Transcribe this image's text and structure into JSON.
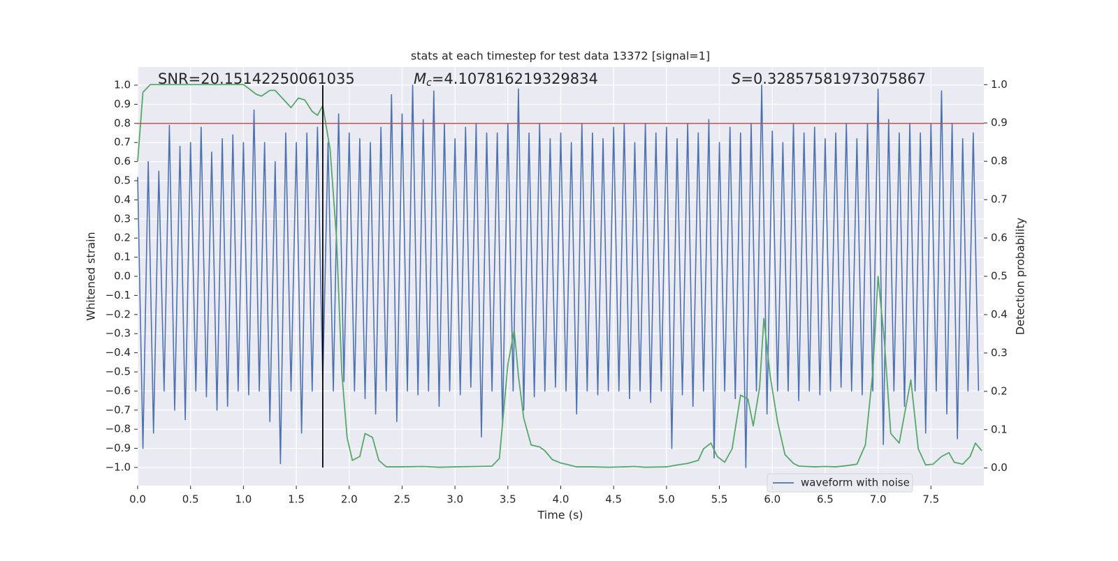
{
  "chart_data": {
    "type": "line",
    "title": "stats at each timestep for test data 13372 [signal=1]",
    "xlabel": "Time (s)",
    "ylabel": "Whitened strain",
    "y2label": "Detection probability",
    "xlim": [
      0,
      8
    ],
    "ylim": [
      -1.095,
      1.095
    ],
    "y2lim": [
      -0.046,
      1.046
    ],
    "xticks": [
      {
        "value": 0,
        "label": "0.0"
      },
      0.5,
      {
        "value": 1,
        "label": "1.0"
      },
      1.5,
      {
        "value": 2,
        "label": "2.0"
      },
      2.5,
      {
        "value": 3,
        "label": "3.0"
      },
      3.5,
      {
        "value": 4,
        "label": "4.0"
      },
      4.5,
      {
        "value": 5,
        "label": "5.0"
      },
      5.5,
      {
        "value": 6,
        "label": "6.0"
      },
      6.5,
      {
        "value": 7,
        "label": "7.0"
      },
      7.5
    ],
    "yticks": [
      {
        "value": 1,
        "label": "1.0"
      },
      0.9,
      0.8,
      0.7,
      0.6,
      0.5,
      0.4,
      0.3,
      0.2,
      0.1,
      {
        "value": 0,
        "label": "0.0"
      },
      {
        "value": -0.1,
        "label": "−0.1"
      },
      {
        "value": -0.2,
        "label": "−0.2"
      },
      {
        "value": -0.3,
        "label": "−0.3"
      },
      {
        "value": -0.4,
        "label": "−0.4"
      },
      {
        "value": -0.5,
        "label": "−0.5"
      },
      {
        "value": -0.6,
        "label": "−0.6"
      },
      {
        "value": -0.7,
        "label": "−0.7"
      },
      {
        "value": -0.8,
        "label": "−0.8"
      },
      {
        "value": -0.9,
        "label": "−0.9"
      },
      {
        "value": -1,
        "label": "−1.0"
      }
    ],
    "y2ticks": [
      {
        "value": 0,
        "label": "0.0"
      },
      0.1,
      0.2,
      0.3,
      0.4,
      0.5,
      0.6,
      0.7,
      0.8,
      0.9,
      {
        "value": 1,
        "label": "1.0"
      }
    ],
    "grid": true,
    "legend": "lower right",
    "series": [
      {
        "name": "waveform with noise",
        "color": "#4c72b0",
        "x": [
          0,
          0.05,
          0.1,
          0.15,
          0.2,
          0.25,
          0.3,
          0.35,
          0.4,
          0.45,
          0.5,
          0.55,
          0.6,
          0.65,
          0.7,
          0.75,
          0.8,
          0.85,
          0.9,
          0.95,
          1,
          1.05,
          1.1,
          1.15,
          1.2,
          1.25,
          1.3,
          1.35,
          1.4,
          1.45,
          1.5,
          1.55,
          1.6,
          1.65,
          1.7,
          1.75,
          1.8,
          1.85,
          1.9,
          1.95,
          2,
          2.05,
          2.1,
          2.15,
          2.2,
          2.25,
          2.3,
          2.35,
          2.4,
          2.45,
          2.5,
          2.55,
          2.6,
          2.65,
          2.7,
          2.75,
          2.8,
          2.85,
          2.9,
          2.95,
          3,
          3.05,
          3.1,
          3.15,
          3.2,
          3.25,
          3.3,
          3.35,
          3.4,
          3.45,
          3.5,
          3.55,
          3.6,
          3.65,
          3.7,
          3.75,
          3.8,
          3.85,
          3.9,
          3.95,
          4,
          4.05,
          4.1,
          4.15,
          4.2,
          4.25,
          4.3,
          4.35,
          4.4,
          4.45,
          4.5,
          4.55,
          4.6,
          4.65,
          4.7,
          4.75,
          4.8,
          4.85,
          4.9,
          4.95,
          5,
          5.05,
          5.1,
          5.15,
          5.2,
          5.25,
          5.3,
          5.35,
          5.4,
          5.45,
          5.5,
          5.55,
          5.6,
          5.65,
          5.7,
          5.75,
          5.8,
          5.85,
          5.9,
          5.95,
          6,
          6.05,
          6.1,
          6.15,
          6.2,
          6.25,
          6.3,
          6.35,
          6.4,
          6.45,
          6.5,
          6.55,
          6.6,
          6.65,
          6.7,
          6.75,
          6.8,
          6.85,
          6.9,
          6.95,
          7,
          7.05,
          7.1,
          7.15,
          7.2,
          7.25,
          7.3,
          7.35,
          7.4,
          7.45,
          7.5,
          7.55,
          7.6,
          7.65,
          7.7,
          7.75,
          7.8,
          7.85,
          7.9,
          7.95
        ],
        "values": [
          0.52,
          -0.9,
          0.6,
          -0.82,
          0.55,
          -0.6,
          0.79,
          -0.7,
          0.68,
          -0.75,
          0.7,
          -0.6,
          0.78,
          -0.63,
          0.65,
          -0.7,
          0.72,
          -0.68,
          0.74,
          -0.6,
          0.7,
          -0.62,
          0.87,
          -0.6,
          0.7,
          -0.76,
          0.6,
          -0.98,
          0.75,
          -0.6,
          0.7,
          -0.82,
          0.75,
          -0.6,
          0.78,
          -0.55,
          0.7,
          -0.6,
          0.85,
          -0.55,
          0.75,
          -0.6,
          0.72,
          -0.64,
          0.7,
          -0.72,
          0.78,
          -0.6,
          0.95,
          -0.76,
          0.85,
          -0.6,
          1.0,
          -0.62,
          0.82,
          -0.6,
          0.97,
          -0.68,
          0.8,
          -0.6,
          0.72,
          -0.62,
          0.78,
          -0.58,
          0.8,
          -0.84,
          0.75,
          -0.6,
          0.75,
          -0.78,
          0.8,
          -0.6,
          0.98,
          -0.7,
          0.75,
          -0.63,
          0.8,
          -0.6,
          0.72,
          -0.58,
          0.75,
          -0.6,
          0.7,
          -0.72,
          0.8,
          -0.6,
          0.75,
          -0.62,
          0.72,
          -0.6,
          0.78,
          -0.6,
          0.8,
          -0.64,
          0.7,
          -0.6,
          0.8,
          -0.66,
          0.75,
          -0.6,
          0.78,
          -0.9,
          0.72,
          -0.62,
          0.8,
          -0.68,
          0.75,
          -0.6,
          0.82,
          -0.95,
          0.7,
          -0.6,
          0.78,
          -0.64,
          0.75,
          -1.0,
          0.8,
          -0.6,
          1.0,
          -0.72,
          0.76,
          -0.6,
          0.7,
          -0.6,
          0.8,
          -0.65,
          0.75,
          -0.6,
          0.78,
          -0.62,
          0.72,
          -0.6,
          0.75,
          -0.58,
          0.8,
          -0.6,
          0.72,
          -0.62,
          0.8,
          -0.6,
          0.98,
          -0.88,
          0.82,
          -0.6,
          0.75,
          -0.68,
          0.8,
          -0.6,
          0.75,
          -0.82,
          0.8,
          -0.6,
          0.97,
          -0.72,
          0.8,
          -0.85,
          0.72,
          -0.6,
          0.75,
          -0.6
        ]
      },
      {
        "color": "#55a868",
        "axis": "y2",
        "x": [
          0,
          0.05,
          0.12,
          1,
          1.05,
          1.12,
          1.17,
          1.25,
          1.3,
          1.35,
          1.45,
          1.52,
          1.58,
          1.65,
          1.7,
          1.75,
          1.82,
          1.88,
          1.93,
          1.98,
          2.03,
          2.1,
          2.15,
          2.22,
          2.28,
          2.35,
          2.5,
          2.7,
          2.85,
          3,
          3.2,
          3.35,
          3.42,
          3.5,
          3.56,
          3.6,
          3.65,
          3.72,
          3.8,
          3.85,
          3.92,
          4,
          4.05,
          4.15,
          4.3,
          4.45,
          4.6,
          4.7,
          4.8,
          5,
          5.1,
          5.2,
          5.3,
          5.35,
          5.42,
          5.48,
          5.55,
          5.62,
          5.7,
          5.77,
          5.82,
          5.88,
          5.92,
          5.98,
          6.05,
          6.12,
          6.2,
          6.25,
          6.4,
          6.5,
          6.6,
          6.7,
          6.8,
          6.88,
          6.95,
          7,
          7.06,
          7.12,
          7.2,
          7.31,
          7.38,
          7.45,
          7.52,
          7.6,
          7.67,
          7.72,
          7.8,
          7.87,
          7.92,
          7.98
        ],
        "values": [
          0.8,
          0.98,
          1.0,
          1.0,
          0.99,
          0.975,
          0.97,
          0.985,
          0.985,
          0.97,
          0.94,
          0.965,
          0.96,
          0.93,
          0.92,
          0.945,
          0.83,
          0.6,
          0.25,
          0.08,
          0.02,
          0.03,
          0.09,
          0.08,
          0.02,
          0.003,
          0.003,
          0.004,
          0.002,
          0.003,
          0.004,
          0.005,
          0.025,
          0.27,
          0.36,
          0.24,
          0.13,
          0.06,
          0.055,
          0.045,
          0.022,
          0.013,
          0.01,
          0.003,
          0.003,
          0.002,
          0.003,
          0.004,
          0.002,
          0.003,
          0.008,
          0.012,
          0.02,
          0.05,
          0.065,
          0.03,
          0.015,
          0.05,
          0.19,
          0.18,
          0.11,
          0.21,
          0.39,
          0.24,
          0.12,
          0.035,
          0.012,
          0.005,
          0.003,
          0.004,
          0.003,
          0.006,
          0.01,
          0.06,
          0.25,
          0.5,
          0.33,
          0.09,
          0.065,
          0.23,
          0.05,
          0.008,
          0.01,
          0.03,
          0.04,
          0.015,
          0.01,
          0.03,
          0.065,
          0.045
        ]
      }
    ],
    "reference_line": {
      "y": 0.8,
      "color": "#c44e52"
    },
    "marker_line": {
      "x": 1.75,
      "y_range": [
        -1,
        1
      ],
      "color": "#000000"
    },
    "annotations": [
      {
        "text": "SNR=20.15142250061035"
      },
      {
        "symbol": "M",
        "subscript": "c",
        "text": "=4.107816219329834"
      },
      {
        "symbol": "S",
        "text": "=0.32857581973075867"
      }
    ]
  }
}
